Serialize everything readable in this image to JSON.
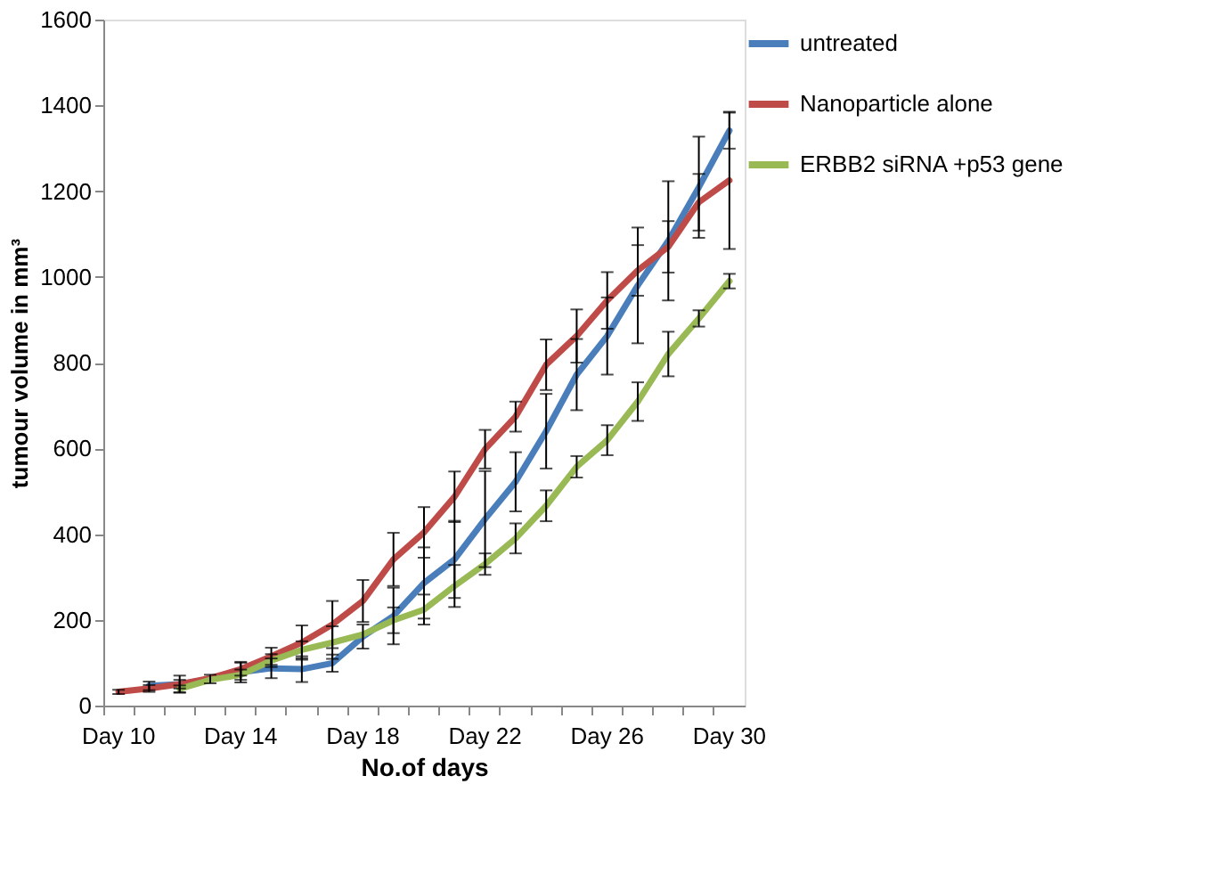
{
  "chart_data": {
    "type": "line",
    "xlabel": "No.of days",
    "ylabel": "tumour volume in mm³",
    "categories": [
      "Day 10",
      null,
      null,
      null,
      "Day 14",
      null,
      null,
      null,
      "Day 18",
      null,
      null,
      null,
      "Day 22",
      null,
      null,
      null,
      "Day 26",
      null,
      null,
      null,
      "Day 30"
    ],
    "ylim": [
      0,
      1600
    ],
    "yticks": [
      0,
      200,
      400,
      600,
      800,
      1000,
      1200,
      1400,
      1600
    ],
    "grid": false,
    "legend": "right",
    "marker": "none",
    "line_style": "solid",
    "series": [
      {
        "name": "untreated",
        "color": "#4a7ebb",
        "values": [
          null,
          46,
          50,
          62,
          78,
          87,
          85,
          99,
          161,
          209,
          286,
          341,
          435,
          522,
          640,
          772,
          862,
          980,
          1084,
          1209,
          1341
        ],
        "errors": [
          null,
          10,
          20,
          10,
          24,
          23,
          30,
          20,
          28,
          66,
          83,
          90,
          112,
          69,
          87,
          83,
          90,
          135,
          139,
          118,
          42
        ]
      },
      {
        "name": "Nanoparticle alone",
        "color": "#be4b48",
        "values": [
          32,
          40,
          50,
          64,
          85,
          115,
          147,
          189,
          244,
          341,
          404,
          487,
          598,
          674,
          795,
          862,
          945,
          1015,
          1070,
          1174,
          1225
        ],
        "errors": [
          5,
          8,
          10,
          null,
          15,
          20,
          40,
          55,
          49,
          62,
          59,
          59,
          45,
          35,
          59,
          62,
          66,
          59,
          60,
          66,
          160
        ]
      },
      {
        "name": "ERBB2 siRNA +p53 gene",
        "color": "#98b954",
        "values": [
          null,
          null,
          39,
          60,
          72,
          105,
          130,
          147,
          166,
          199,
          224,
          279,
          330,
          390,
          466,
          557,
          619,
          709,
          820,
          903,
          990
        ],
        "errors": [
          null,
          null,
          8,
          null,
          12,
          15,
          20,
          38,
          null,
          30,
          35,
          49,
          25,
          35,
          36,
          25,
          35,
          45,
          52,
          19,
          17
        ]
      }
    ]
  }
}
